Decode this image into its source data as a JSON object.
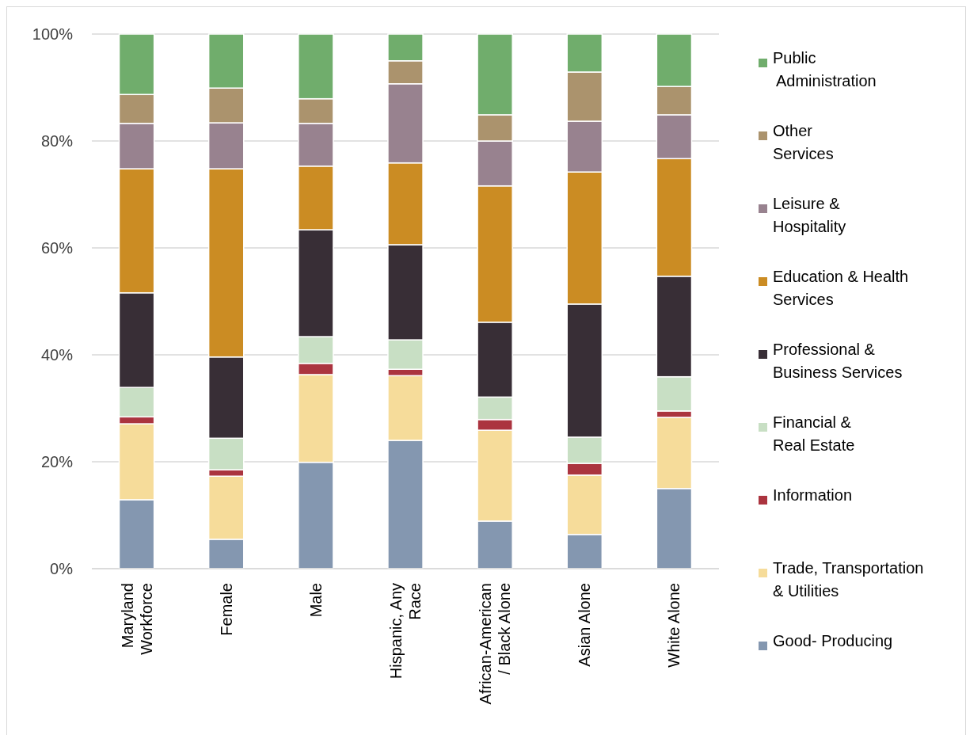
{
  "chart_data": {
    "type": "bar",
    "stacked": true,
    "categories": [
      "Maryland\nWorkforce",
      "Female",
      "Male",
      "Hispanic, Any\nRace",
      "African-American\n/ Black Alone",
      "Asian Alone",
      "White Alone"
    ],
    "ylim": [
      0,
      100
    ],
    "yticks": [
      {
        "value": 0,
        "label": "0%"
      },
      {
        "value": 20,
        "label": "20%"
      },
      {
        "value": 40,
        "label": "40%"
      },
      {
        "value": 60,
        "label": "60%"
      },
      {
        "value": 80,
        "label": "80%"
      },
      {
        "value": 100,
        "label": "100%"
      }
    ],
    "grid": "y",
    "legend": "right",
    "series": [
      {
        "name": "Good- Producing",
        "color": "#8497b0",
        "values": [
          12.9,
          5.5,
          19.9,
          24.0,
          8.9,
          6.4,
          15.0
        ]
      },
      {
        "name": "Trade, Transportation\n& Utilities",
        "color": "#f6dc9a",
        "values": [
          14.2,
          11.8,
          16.4,
          12.1,
          17.0,
          11.1,
          13.3
        ]
      },
      {
        "name": "Information",
        "color": "#ab343f",
        "values": [
          1.3,
          1.2,
          2.1,
          1.2,
          2.0,
          2.2,
          1.2
        ]
      },
      {
        "name": "Financial &\nReal Estate",
        "color": "#c8dfc4",
        "values": [
          5.5,
          5.9,
          5.0,
          5.5,
          4.2,
          4.9,
          6.4
        ]
      },
      {
        "name": "Professional &\nBusiness Services",
        "color": "#382e36",
        "values": [
          17.7,
          15.2,
          20.0,
          17.8,
          14.0,
          24.9,
          18.8
        ]
      },
      {
        "name": "Education & Health\nServices",
        "color": "#cb8c23",
        "values": [
          23.2,
          35.2,
          11.9,
          15.3,
          25.5,
          24.7,
          22.0
        ]
      },
      {
        "name": "Leisure &\nHospitality",
        "color": "#98828f",
        "values": [
          8.5,
          8.6,
          8.0,
          14.8,
          8.4,
          9.5,
          8.2
        ]
      },
      {
        "name": "Other\nServices",
        "color": "#ab936d",
        "values": [
          5.4,
          6.5,
          4.6,
          4.3,
          4.9,
          9.2,
          5.3
        ]
      },
      {
        "name": "Public\nAdministration",
        "color": "#70ad6c",
        "values": [
          11.3,
          10.1,
          12.1,
          5.0,
          15.1,
          7.1,
          9.8
        ]
      }
    ]
  }
}
